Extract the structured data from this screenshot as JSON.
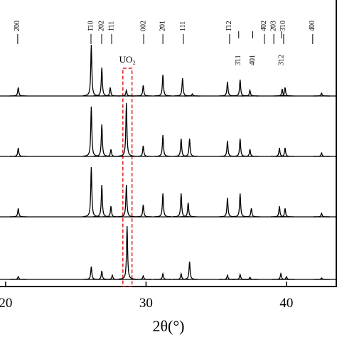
{
  "chart_data": {
    "type": "line",
    "x_label": "2θ(°)",
    "xlim": [
      19.6,
      43.6
    ],
    "xticks": [
      20,
      30,
      40
    ],
    "annotation": "UO₂",
    "annotation_range": [
      28.35,
      29.0
    ],
    "reflections": [
      {
        "x": 20.86,
        "label": "2̄00"
      },
      {
        "x": 26.08,
        "label": "1̄10"
      },
      {
        "x": 26.84,
        "label": "2̄02"
      },
      {
        "x": 27.55,
        "label": "1̄11"
      },
      {
        "x": 29.83,
        "label": "002"
      },
      {
        "x": 31.2,
        "label": "2̄01"
      },
      {
        "x": 32.66,
        "label": "111"
      },
      {
        "x": 35.95,
        "label": "1̄12"
      },
      {
        "x": 38.43,
        "label": "4̄02"
      },
      {
        "x": 39.1,
        "label": "2̄03"
      },
      {
        "x": 39.8,
        "label": "3̄10"
      },
      {
        "x": 41.87,
        "label": "4̄00"
      }
    ],
    "reflections_lower": [
      {
        "x": 36.6,
        "label": "3̄11"
      },
      {
        "x": 37.6,
        "label": "4̄01"
      },
      {
        "x": 39.65,
        "label": "3̄12"
      }
    ],
    "color": "#000000",
    "series": [
      {
        "x": [
          20.9,
          26.1,
          26.85,
          27.45,
          28.6,
          29.8,
          31.2,
          32.6,
          33.3,
          35.8,
          36.7,
          37.4,
          39.7,
          39.9,
          42.5
        ],
        "values": [
          12,
          72,
          40,
          12,
          8,
          15,
          30,
          25,
          3,
          20,
          23,
          8,
          10,
          12,
          4
        ]
      },
      {
        "x": [
          20.9,
          26.1,
          26.85,
          27.5,
          28.6,
          29.8,
          31.2,
          32.5,
          33.1,
          35.8,
          36.7,
          37.4,
          39.5,
          39.9,
          42.5
        ],
        "values": [
          12,
          70,
          45,
          10,
          75,
          15,
          30,
          25,
          25,
          22,
          25,
          10,
          12,
          12,
          5
        ]
      },
      {
        "x": [
          20.9,
          26.1,
          26.85,
          27.5,
          28.6,
          29.8,
          31.2,
          32.5,
          33.0,
          35.8,
          36.7,
          37.5,
          39.5,
          39.9,
          42.5
        ],
        "values": [
          12,
          70,
          45,
          15,
          45,
          17,
          33,
          33,
          20,
          27,
          33,
          12,
          15,
          12,
          5
        ]
      },
      {
        "x": [
          20.9,
          26.1,
          26.85,
          27.6,
          28.65,
          29.8,
          31.2,
          32.5,
          33.1,
          35.8,
          36.7,
          37.4,
          39.6,
          40.0,
          42.5
        ],
        "values": [
          4,
          18,
          12,
          6,
          75,
          5,
          8,
          8,
          25,
          6,
          7,
          3,
          8,
          4,
          2
        ]
      }
    ]
  }
}
